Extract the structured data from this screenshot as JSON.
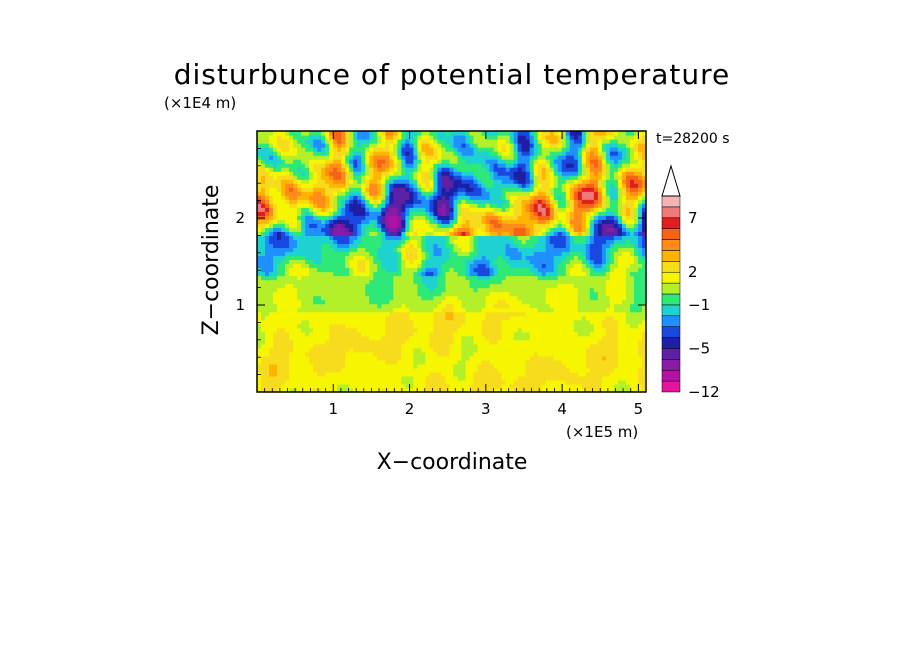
{
  "chart_data": {
    "type": "heatmap",
    "title": "disturbunce of potential temperature",
    "time_label": "t=28200 s",
    "xlabel": "X−coordinate",
    "ylabel": "Z−coordinate",
    "x_units": "(×1E5 m)",
    "y_units": "(×1E4 m)",
    "xlim": [
      0,
      5.1
    ],
    "ylim": [
      0,
      3.0
    ],
    "x_ticks": [
      1,
      2,
      3,
      4,
      5
    ],
    "y_ticks": [
      1,
      2
    ],
    "x_tick_labels": [
      "1",
      "2",
      "3",
      "4",
      "5"
    ],
    "y_tick_labels": [
      "1",
      "2"
    ],
    "colorbar": {
      "levels": [
        -12,
        -10,
        -8,
        -6,
        -5,
        -4,
        -3,
        -2,
        -1,
        0,
        1,
        2,
        3,
        4,
        5,
        6,
        7,
        8,
        9
      ],
      "colors": [
        "#e6149a",
        "#b410a5",
        "#8a1aa8",
        "#5e21a6",
        "#1d1fa5",
        "#1848e0",
        "#1e90ff",
        "#1ed2d2",
        "#2ee878",
        "#b4f02a",
        "#f6f600",
        "#f7dc1e",
        "#ffb400",
        "#ff8c1a",
        "#f46414",
        "#e01e1e",
        "#ee7a7a",
        "#f5b4b4"
      ],
      "extend_color": "#ffffff",
      "tick_labels": [
        {
          "value": -12,
          "label": "−12"
        },
        {
          "value": -5,
          "label": "−5"
        },
        {
          "value": -1,
          "label": "−1"
        },
        {
          "value": 2,
          "label": "2"
        },
        {
          "value": 7,
          "label": "7"
        }
      ]
    }
  }
}
